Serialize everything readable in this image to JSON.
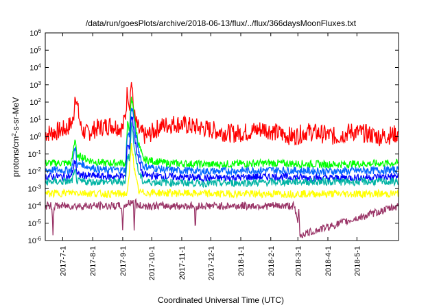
{
  "chart_data": {
    "type": "line",
    "title": "/data/run/goesPlots/archive/2018-06-13/flux/../flux/366daysMoonFluxes.txt",
    "xlabel": "Coordinated Universal Time (UTC)",
    "ylabel_base": "protons/cm",
    "ylabel_exp": "2",
    "ylabel_rest": "-s-sr-MeV",
    "yscale": "log",
    "ylim": [
      1e-06,
      1000000.0
    ],
    "xlim": [
      "2017-06-13",
      "2018-06-13"
    ],
    "grid": false,
    "y_ticks": [
      {
        "base": "10",
        "exp": "6",
        "value": 1000000.0
      },
      {
        "base": "10",
        "exp": "5",
        "value": 100000.0
      },
      {
        "base": "10",
        "exp": "4",
        "value": 10000.0
      },
      {
        "base": "10",
        "exp": "3",
        "value": 1000.0
      },
      {
        "base": "10",
        "exp": "2",
        "value": 100.0
      },
      {
        "base": "10",
        "exp": "1",
        "value": 10.0
      },
      {
        "base": "10",
        "exp": "0",
        "value": 1.0
      },
      {
        "base": "10",
        "exp": "-1",
        "value": 0.1
      },
      {
        "base": "10",
        "exp": "-2",
        "value": 0.01
      },
      {
        "base": "10",
        "exp": "-3",
        "value": 0.001
      },
      {
        "base": "10",
        "exp": "-4",
        "value": 0.0001
      },
      {
        "base": "10",
        "exp": "-5",
        "value": 1e-05
      },
      {
        "base": "10",
        "exp": "-6",
        "value": 1e-06
      }
    ],
    "x_ticks": [
      {
        "label": "2017-7-1",
        "date": "2017-07-01"
      },
      {
        "label": "2017-8-1",
        "date": "2017-08-01"
      },
      {
        "label": "2017-9-1",
        "date": "2017-09-01"
      },
      {
        "label": "2017-10-1",
        "date": "2017-10-01"
      },
      {
        "label": "2017-11-1",
        "date": "2017-11-01"
      },
      {
        "label": "2017-12-1",
        "date": "2017-12-01"
      },
      {
        "label": "2018-1-1",
        "date": "2018-01-01"
      },
      {
        "label": "2018-2-1",
        "date": "2018-02-01"
      },
      {
        "label": "2018-3-1",
        "date": "2018-03-01"
      },
      {
        "label": "2018-4-1",
        "date": "2018-04-01"
      },
      {
        "label": "2018-5-1",
        "date": "2018-05-01"
      }
    ],
    "series": [
      {
        "color": "#ff0000",
        "x": [
          "2017-06-13",
          "2017-06-25",
          "2017-07-05",
          "2017-07-12",
          "2017-07-14",
          "2017-07-16",
          "2017-07-20",
          "2017-07-25",
          "2017-08-05",
          "2017-08-20",
          "2017-09-01",
          "2017-09-04",
          "2017-09-06",
          "2017-09-08",
          "2017-09-10",
          "2017-09-11",
          "2017-09-12",
          "2017-09-14",
          "2017-09-18",
          "2017-09-25",
          "2017-10-10",
          "2017-10-25",
          "2017-11-10",
          "2017-11-25",
          "2017-12-10",
          "2017-12-25",
          "2018-01-10",
          "2018-01-25",
          "2018-02-10",
          "2018-02-25",
          "2018-03-10",
          "2018-03-25",
          "2018-04-10",
          "2018-04-25",
          "2018-05-10",
          "2018-05-25",
          "2018-06-13"
        ],
        "values": [
          1.5,
          2,
          3,
          8,
          500,
          60,
          3,
          1.5,
          3,
          5,
          3,
          20,
          700,
          60,
          2000,
          300,
          50,
          8,
          2,
          1,
          4,
          6,
          4,
          3,
          2,
          1.5,
          2,
          3,
          1.5,
          1,
          2,
          1.5,
          1,
          2,
          1.5,
          1,
          1.5
        ]
      },
      {
        "color": "#00ff00",
        "x": [
          "2017-06-13",
          "2017-07-10",
          "2017-07-14",
          "2017-07-16",
          "2017-07-20",
          "2017-07-25",
          "2017-08-10",
          "2017-09-04",
          "2017-09-06",
          "2017-09-08",
          "2017-09-10",
          "2017-09-12",
          "2017-09-14",
          "2017-09-17",
          "2017-09-22",
          "2017-10-15",
          "2017-12-01",
          "2018-02-01",
          "2018-04-01",
          "2018-06-13"
        ],
        "values": [
          0.03,
          0.03,
          1,
          0.05,
          0.08,
          0.05,
          0.03,
          0.03,
          5,
          3,
          150,
          50,
          5,
          0.5,
          0.05,
          0.03,
          0.025,
          0.03,
          0.025,
          0.03
        ]
      },
      {
        "color": "#0066ff",
        "x": [
          "2017-06-13",
          "2017-07-10",
          "2017-07-14",
          "2017-07-16",
          "2017-07-20",
          "2017-07-25",
          "2017-08-10",
          "2017-09-04",
          "2017-09-06",
          "2017-09-08",
          "2017-09-10",
          "2017-09-12",
          "2017-09-14",
          "2017-09-17",
          "2017-09-22",
          "2017-10-15",
          "2017-12-01",
          "2018-02-01",
          "2018-04-01",
          "2018-06-13"
        ],
        "values": [
          0.012,
          0.012,
          0.3,
          0.02,
          0.03,
          0.02,
          0.012,
          0.012,
          2,
          1,
          60,
          20,
          2,
          0.2,
          0.02,
          0.012,
          0.01,
          0.012,
          0.01,
          0.012
        ]
      },
      {
        "color": "#0000ff",
        "x": [
          "2017-06-13",
          "2017-07-10",
          "2017-07-14",
          "2017-07-16",
          "2017-07-20",
          "2017-08-10",
          "2017-09-04",
          "2017-09-06",
          "2017-09-08",
          "2017-09-10",
          "2017-09-12",
          "2017-09-14",
          "2017-09-17",
          "2017-09-22",
          "2017-10-15",
          "2017-12-01",
          "2018-02-01",
          "2018-04-01",
          "2018-06-13"
        ],
        "values": [
          0.005,
          0.005,
          0.05,
          0.006,
          0.006,
          0.005,
          0.005,
          0.5,
          0.2,
          20,
          5,
          0.5,
          0.05,
          0.006,
          0.005,
          0.004,
          0.005,
          0.004,
          0.005
        ]
      },
      {
        "color": "#00b3a4",
        "x": [
          "2017-06-13",
          "2017-07-10",
          "2017-07-14",
          "2017-07-16",
          "2017-08-10",
          "2017-09-04",
          "2017-09-06",
          "2017-09-08",
          "2017-09-10",
          "2017-09-12",
          "2017-09-14",
          "2017-09-17",
          "2017-09-22",
          "2017-12-01",
          "2018-03-01",
          "2018-06-13"
        ],
        "values": [
          0.0025,
          0.0025,
          0.01,
          0.0025,
          0.0025,
          0.0025,
          0.1,
          0.05,
          5,
          1,
          0.1,
          0.01,
          0.0025,
          0.002,
          0.0025,
          0.0025
        ]
      },
      {
        "color": "#ffff00",
        "x": [
          "2017-06-13",
          "2017-07-14",
          "2017-08-10",
          "2017-09-06",
          "2017-09-08",
          "2017-09-10",
          "2017-09-12",
          "2017-09-14",
          "2017-09-18",
          "2017-12-01",
          "2018-03-01",
          "2018-06-13"
        ],
        "values": [
          0.0005,
          0.0006,
          0.0005,
          0.0005,
          0.01,
          0.5,
          0.05,
          0.005,
          0.0006,
          0.0005,
          0.0005,
          0.0005
        ]
      },
      {
        "color": "#993366",
        "x": [
          "2017-06-13",
          "2017-06-20",
          "2017-06-21",
          "2017-06-22",
          "2017-07-14",
          "2017-08-10",
          "2017-08-31",
          "2017-09-01",
          "2017-09-02",
          "2017-09-12",
          "2017-09-13",
          "2017-09-14",
          "2017-09-16",
          "2017-11-14",
          "2017-11-15",
          "2017-11-16",
          "2018-02-25",
          "2018-03-01",
          "2018-03-02",
          "2018-03-03",
          "2018-06-13"
        ],
        "values": [
          0.0001,
          0.0001,
          2e-06,
          0.0001,
          0.0001,
          0.0001,
          0.0001,
          2e-06,
          0.0001,
          0.0002,
          3e-06,
          0.0002,
          0.0001,
          0.0001,
          3e-06,
          0.0001,
          0.0001,
          1e-05,
          0.0001,
          2e-06,
          0.0001
        ]
      }
    ]
  }
}
